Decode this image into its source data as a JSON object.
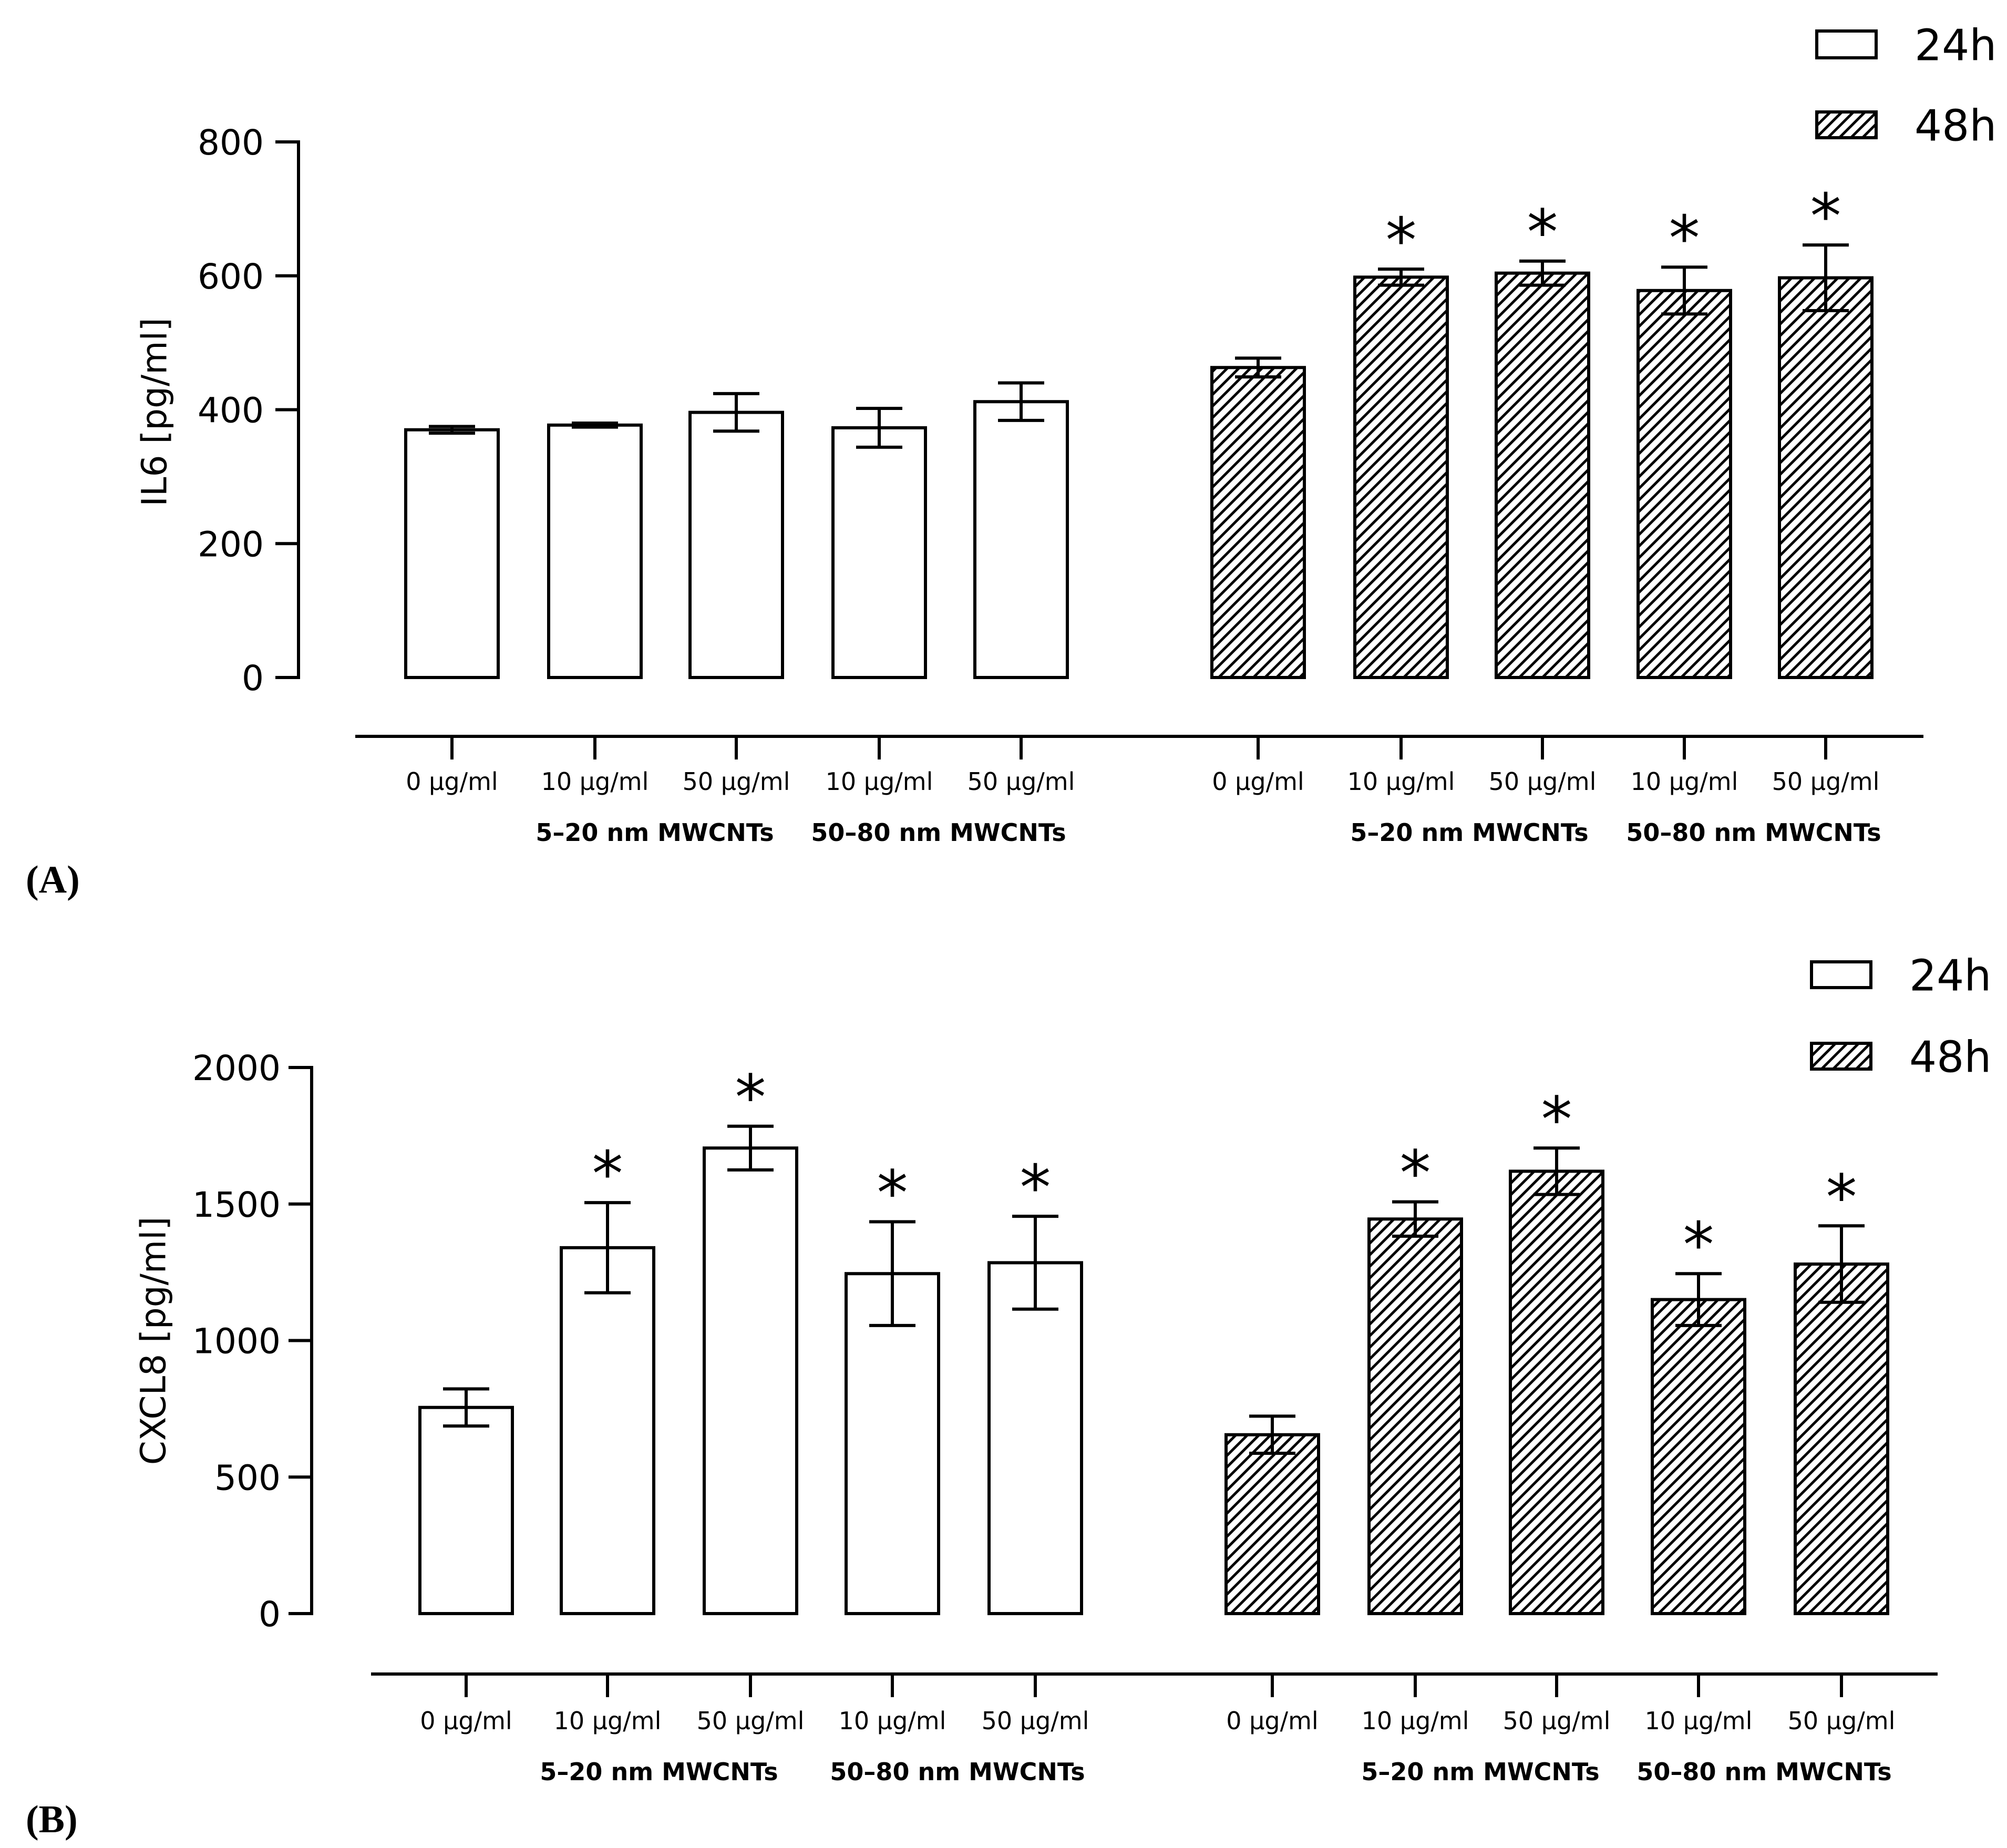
{
  "colors": {
    "stroke": "#000000",
    "bar_fill": "#ffffff",
    "background": "#ffffff"
  },
  "chart_data": [
    {
      "panel_label": "(A)",
      "type": "bar",
      "ylabel": "IL6 [pg/ml]",
      "ylim": [
        0,
        800
      ],
      "yticks": [
        0,
        200,
        400,
        600,
        800
      ],
      "categories": [
        "0 µg/ml",
        "10 µg/ml",
        "50 µg/ml",
        "10 µg/ml",
        "50 µg/ml"
      ],
      "groups": [
        "5–20 nm MWCNTs",
        "50–80 nm MWCNTs"
      ],
      "category_group": [
        null,
        0,
        0,
        1,
        1
      ],
      "significance_marker": "*",
      "legend_position": "top-right",
      "series": [
        {
          "name": "24h",
          "hatched": false,
          "values": [
            370,
            377,
            396,
            373,
            412
          ],
          "errors": [
            5,
            3,
            28,
            29,
            28
          ],
          "significant": [
            false,
            false,
            false,
            false,
            false
          ]
        },
        {
          "name": "48h",
          "hatched": true,
          "values": [
            463,
            598,
            604,
            578,
            597
          ],
          "errors": [
            14,
            12,
            18,
            35,
            49
          ],
          "significant": [
            false,
            true,
            true,
            true,
            true
          ]
        }
      ]
    },
    {
      "panel_label": "(B)",
      "type": "bar",
      "ylabel": "CXCL8 [pg/ml]",
      "ylim": [
        0,
        2000
      ],
      "yticks": [
        0,
        500,
        1000,
        1500,
        2000
      ],
      "categories": [
        "0 µg/ml",
        "10 µg/ml",
        "50 µg/ml",
        "10 µg/ml",
        "50 µg/ml"
      ],
      "groups": [
        "5–20 nm MWCNTs",
        "50–80 nm MWCNTs"
      ],
      "category_group": [
        null,
        0,
        0,
        1,
        1
      ],
      "significance_marker": "*",
      "legend_position": "top-right",
      "series": [
        {
          "name": "24h",
          "hatched": false,
          "values": [
            755,
            1340,
            1705,
            1245,
            1285
          ],
          "errors": [
            68,
            165,
            80,
            190,
            170
          ],
          "significant": [
            false,
            true,
            true,
            true,
            true
          ]
        },
        {
          "name": "48h",
          "hatched": true,
          "values": [
            655,
            1445,
            1620,
            1150,
            1280
          ],
          "errors": [
            68,
            63,
            85,
            95,
            140
          ],
          "significant": [
            false,
            true,
            true,
            true,
            true
          ]
        }
      ]
    }
  ]
}
